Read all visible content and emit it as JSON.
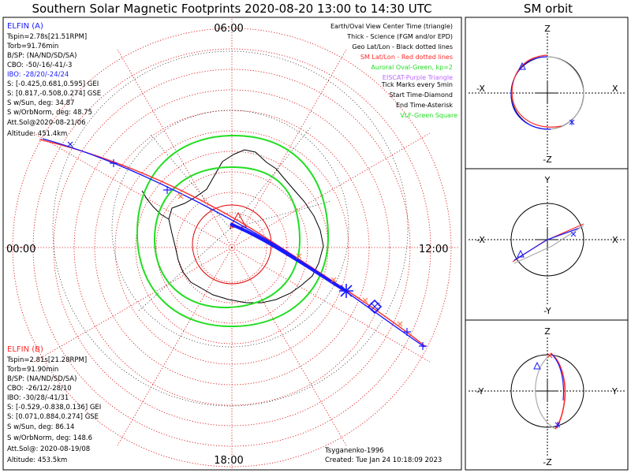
{
  "title": "Southern Solar Magnetic Footprints 2020-08-20 13:00 to 14:30 UTC",
  "orbit_title": "SM orbit",
  "colors": {
    "blue": "#1a1aff",
    "red": "#ff2a2a",
    "green": "#22dd22",
    "purple": "#bb66ff",
    "gray": "#aaaaaa",
    "dotted_red": "#dd0000",
    "black": "#000000"
  },
  "mlt_labels": {
    "top": "06:00",
    "bottom": "18:00",
    "left": "00:00",
    "right": "12:00"
  },
  "elfin_a": {
    "name": "ELFIN (A)",
    "lines": [
      "Tspin=2.78s[21.51RPM]",
      "Torb=91.76min",
      "B/SP: (NA/ND/SD/SA)",
      "CBO: -50/-16/-41/-3",
      "IBO: -28/20/-24/24",
      "S: [-0.425,0.681,0.595] GEI",
      "S: [0.817,-0.508,0.274] GSE",
      "S w/Sun, deg: 34.87",
      "S w/OrbNorm, deg: 48.75",
      "Att.Sol@2020-08-21/06",
      "Altitude: 451.4km"
    ]
  },
  "elfin_b": {
    "name": "ELFIN (B)",
    "lines": [
      "Tspin=2.81s[21.28RPM]",
      "Torb=91.90min",
      "B/SP: (NA/ND/SD/SA)",
      "CBO: -26/12/-28/10",
      "IBO: -30/28/-41/31",
      "S: [-0.529,-0.838,0.136] GEI",
      "S: [0.071,0.884,0.274] GSE",
      "S w/Sun, deg: 86.14",
      "S w/OrbNorm, deg: 148.6",
      "Att.Sol@: 2020-08-19/08",
      "Altitude: 453.5km"
    ]
  },
  "legend": [
    {
      "text": "Earth/Oval View Center Time (triangle)",
      "color": "#000000"
    },
    {
      "text": "Thick - Science (FGM and/or EPD)",
      "color": "#000000"
    },
    {
      "text": "Geo Lat/Lon - Black dotted lines",
      "color": "#000000"
    },
    {
      "text": "SM Lat/Lon - Red dotted lines",
      "color": "#ff2a2a"
    },
    {
      "text": "Auroral Oval-Green, kp=2",
      "color": "#22dd22"
    },
    {
      "text": "EISCAT-Purple Triangle",
      "color": "#bb66ff"
    },
    {
      "text": "Tick Marks every 5min",
      "color": "#000000"
    },
    {
      "text": "Start Time-Diamond",
      "color": "#000000"
    },
    {
      "text": "End Time-Asterisk",
      "color": "#000000"
    },
    {
      "text": "VLF-Green Square",
      "color": "#22dd22"
    }
  ],
  "model": "Tsyganenko-1996",
  "created": "Created: Tue Jan 24 10:18:09 2023",
  "panels": [
    {
      "top": "Z",
      "bottom": "-Z",
      "left": "-X",
      "right": "X"
    },
    {
      "top": "Y",
      "bottom": "-Y",
      "left": "-X",
      "right": "X"
    },
    {
      "top": "Z",
      "bottom": "-Z",
      "left": "-Y",
      "right": "Y"
    }
  ]
}
